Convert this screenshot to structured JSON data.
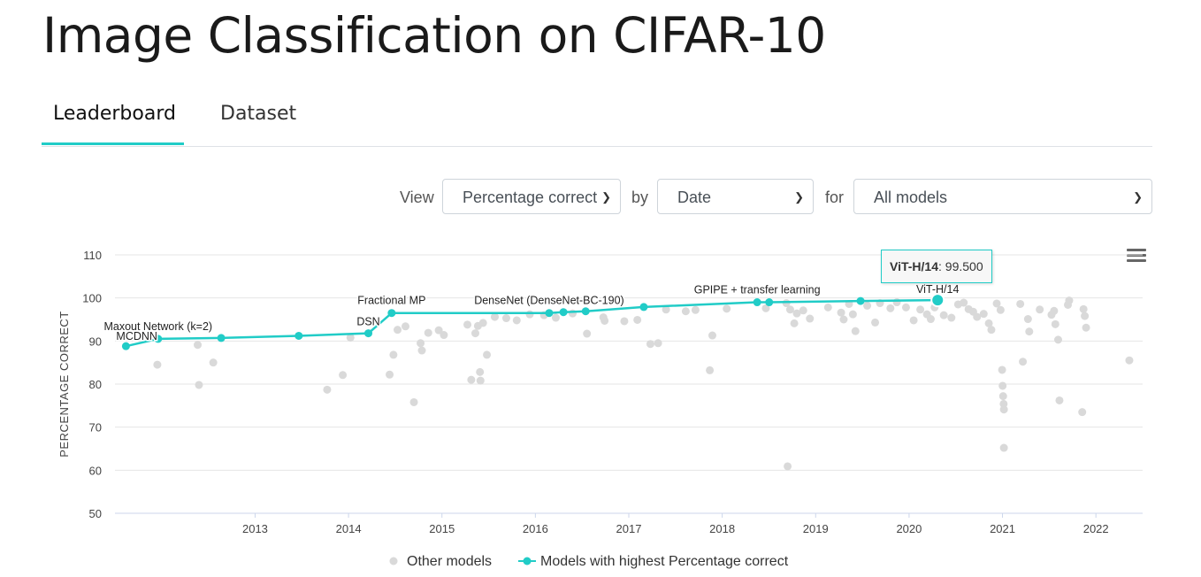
{
  "page": {
    "title": "Image Classification on CIFAR-10"
  },
  "tabs": [
    {
      "label": "Leaderboard",
      "active": true
    },
    {
      "label": "Dataset",
      "active": false
    }
  ],
  "controls": {
    "view_label": "View",
    "view_value": "Percentage correct",
    "by_label": "by",
    "by_value": "Date",
    "for_label": "for",
    "for_value": "All models"
  },
  "icons": {
    "menu": "hamburger-menu-icon",
    "select_arrow": "chevron-down-icon"
  },
  "colors": {
    "accent": "#21ccc7",
    "other_models": "#d9d9d9"
  },
  "tooltip": {
    "model": "ViT-H/14",
    "value": "99.500"
  },
  "legend": {
    "other": "Other models",
    "sota": "Models with highest Percentage correct"
  },
  "chart_data": {
    "type": "scatter",
    "ylabel": "PERCENTAGE CORRECT",
    "ylim": [
      50,
      110
    ],
    "yticks": [
      50,
      60,
      70,
      80,
      90,
      100,
      110
    ],
    "xlim": [
      "2012-01-01",
      "2022-12-31"
    ],
    "xticks": [
      "2013",
      "2014",
      "2015",
      "2016",
      "2017",
      "2018",
      "2019",
      "2020",
      "2021",
      "2022"
    ],
    "grid": true,
    "legend_position": "bottom",
    "series": [
      {
        "name": "Models with highest Percentage correct",
        "type": "line",
        "points": [
          {
            "x": "2012-02-13",
            "y": 88.8,
            "label": "MCDNN"
          },
          {
            "x": "2012-06-18",
            "y": 90.5,
            "label": "Maxout Network (k=2)"
          },
          {
            "x": "2013-02-20",
            "y": 90.7
          },
          {
            "x": "2013-12-20",
            "y": 91.2
          },
          {
            "x": "2014-09-18",
            "y": 91.8,
            "label": "DSN"
          },
          {
            "x": "2014-12-18",
            "y": 96.5,
            "label": "Fractional MP"
          },
          {
            "x": "2016-08-25",
            "y": 96.5,
            "label": "DenseNet (DenseNet-BC-190)"
          },
          {
            "x": "2016-10-20",
            "y": 96.7
          },
          {
            "x": "2017-01-15",
            "y": 96.9
          },
          {
            "x": "2017-08-30",
            "y": 97.9
          },
          {
            "x": "2018-11-16",
            "y": 99.0,
            "label": "GPIPE + transfer learning"
          },
          {
            "x": "2019-01-02",
            "y": 99.0
          },
          {
            "x": "2019-12-25",
            "y": 99.3
          },
          {
            "x": "2020-10-22",
            "y": 99.5,
            "label": "ViT-H/14"
          }
        ]
      },
      {
        "name": "Other models",
        "type": "scatter",
        "points": [
          {
            "x": "2012-06-15",
            "y": 84.5
          },
          {
            "x": "2012-11-25",
            "y": 79.8
          },
          {
            "x": "2012-11-20",
            "y": 89.1
          },
          {
            "x": "2013-01-20",
            "y": 85.0
          },
          {
            "x": "2014-04-10",
            "y": 78.7
          },
          {
            "x": "2014-06-10",
            "y": 82.1
          },
          {
            "x": "2014-07-10",
            "y": 90.8
          },
          {
            "x": "2014-12-10",
            "y": 82.2
          },
          {
            "x": "2014-12-25",
            "y": 86.8
          },
          {
            "x": "2015-01-10",
            "y": 92.6
          },
          {
            "x": "2015-02-10",
            "y": 93.4
          },
          {
            "x": "2015-03-15",
            "y": 75.8
          },
          {
            "x": "2015-04-10",
            "y": 89.5
          },
          {
            "x": "2015-04-15",
            "y": 87.8
          },
          {
            "x": "2015-05-10",
            "y": 91.9
          },
          {
            "x": "2015-06-20",
            "y": 92.5
          },
          {
            "x": "2015-07-10",
            "y": 91.4
          },
          {
            "x": "2015-10-10",
            "y": 93.8
          },
          {
            "x": "2015-10-25",
            "y": 81.0
          },
          {
            "x": "2015-11-10",
            "y": 91.8
          },
          {
            "x": "2015-11-20",
            "y": 93.5
          },
          {
            "x": "2015-11-28",
            "y": 82.8
          },
          {
            "x": "2015-11-30",
            "y": 80.8
          },
          {
            "x": "2015-12-10",
            "y": 94.2
          },
          {
            "x": "2015-12-25",
            "y": 86.8
          },
          {
            "x": "2016-01-25",
            "y": 95.6
          },
          {
            "x": "2016-03-10",
            "y": 95.3
          },
          {
            "x": "2016-04-20",
            "y": 94.8
          },
          {
            "x": "2016-06-10",
            "y": 96.2
          },
          {
            "x": "2016-08-05",
            "y": 96.0
          },
          {
            "x": "2016-09-20",
            "y": 95.4
          },
          {
            "x": "2016-11-25",
            "y": 96.4
          },
          {
            "x": "2017-01-20",
            "y": 91.7
          },
          {
            "x": "2017-03-25",
            "y": 95.5
          },
          {
            "x": "2017-03-30",
            "y": 94.7
          },
          {
            "x": "2017-06-15",
            "y": 94.6
          },
          {
            "x": "2017-08-05",
            "y": 94.9
          },
          {
            "x": "2017-09-25",
            "y": 89.3
          },
          {
            "x": "2017-10-25",
            "y": 89.5
          },
          {
            "x": "2017-11-25",
            "y": 97.3
          },
          {
            "x": "2018-02-10",
            "y": 96.9
          },
          {
            "x": "2018-03-20",
            "y": 97.2
          },
          {
            "x": "2018-05-15",
            "y": 83.2
          },
          {
            "x": "2018-05-25",
            "y": 91.3
          },
          {
            "x": "2018-07-20",
            "y": 97.5
          },
          {
            "x": "2018-12-20",
            "y": 97.6
          },
          {
            "x": "2019-03-10",
            "y": 98.8
          },
          {
            "x": "2019-03-25",
            "y": 97.3
          },
          {
            "x": "2019-04-10",
            "y": 94.1
          },
          {
            "x": "2019-04-20",
            "y": 96.4
          },
          {
            "x": "2019-05-15",
            "y": 97.1
          },
          {
            "x": "2019-06-10",
            "y": 95.2
          },
          {
            "x": "2019-03-15",
            "y": 60.9
          },
          {
            "x": "2019-08-20",
            "y": 97.8
          },
          {
            "x": "2019-10-10",
            "y": 96.6
          },
          {
            "x": "2019-10-20",
            "y": 95.0
          },
          {
            "x": "2019-11-10",
            "y": 98.6
          },
          {
            "x": "2019-11-25",
            "y": 96.2
          },
          {
            "x": "2019-12-05",
            "y": 92.3
          },
          {
            "x": "2020-01-20",
            "y": 98.2
          },
          {
            "x": "2020-02-20",
            "y": 94.3
          },
          {
            "x": "2020-03-10",
            "y": 98.8
          },
          {
            "x": "2020-04-20",
            "y": 97.6
          },
          {
            "x": "2020-05-15",
            "y": 99.0
          },
          {
            "x": "2020-06-20",
            "y": 97.8
          },
          {
            "x": "2020-07-20",
            "y": 94.8
          },
          {
            "x": "2020-08-15",
            "y": 97.3
          },
          {
            "x": "2020-09-10",
            "y": 96.2
          },
          {
            "x": "2020-09-25",
            "y": 95.1
          },
          {
            "x": "2020-10-10",
            "y": 97.8
          },
          {
            "x": "2020-11-15",
            "y": 96.0
          },
          {
            "x": "2020-12-15",
            "y": 95.4
          },
          {
            "x": "2021-01-10",
            "y": 98.5
          },
          {
            "x": "2021-02-01",
            "y": 98.9
          },
          {
            "x": "2021-02-20",
            "y": 97.4
          },
          {
            "x": "2021-03-10",
            "y": 96.8
          },
          {
            "x": "2021-03-25",
            "y": 95.6
          },
          {
            "x": "2021-04-20",
            "y": 96.3
          },
          {
            "x": "2021-05-10",
            "y": 94.1
          },
          {
            "x": "2021-05-20",
            "y": 92.6
          },
          {
            "x": "2021-06-10",
            "y": 98.7
          },
          {
            "x": "2021-06-25",
            "y": 97.2
          },
          {
            "x": "2021-07-01",
            "y": 83.3
          },
          {
            "x": "2021-07-03",
            "y": 79.6
          },
          {
            "x": "2021-07-05",
            "y": 77.2
          },
          {
            "x": "2021-07-07",
            "y": 75.4
          },
          {
            "x": "2021-07-08",
            "y": 74.1
          },
          {
            "x": "2021-07-08",
            "y": 65.2
          },
          {
            "x": "2021-09-10",
            "y": 98.6
          },
          {
            "x": "2021-09-20",
            "y": 85.2
          },
          {
            "x": "2021-10-10",
            "y": 95.1
          },
          {
            "x": "2021-10-15",
            "y": 92.2
          },
          {
            "x": "2021-11-25",
            "y": 97.3
          },
          {
            "x": "2022-01-10",
            "y": 96.1
          },
          {
            "x": "2022-01-20",
            "y": 97.0
          },
          {
            "x": "2022-01-25",
            "y": 93.9
          },
          {
            "x": "2022-02-05",
            "y": 90.3
          },
          {
            "x": "2022-02-10",
            "y": 76.2
          },
          {
            "x": "2022-03-15",
            "y": 98.4
          },
          {
            "x": "2022-03-20",
            "y": 99.4
          },
          {
            "x": "2022-05-15",
            "y": 97.4
          },
          {
            "x": "2022-05-20",
            "y": 95.8
          },
          {
            "x": "2022-05-25",
            "y": 93.1
          },
          {
            "x": "2022-05-10",
            "y": 73.5
          },
          {
            "x": "2022-11-10",
            "y": 85.5
          }
        ]
      }
    ]
  }
}
